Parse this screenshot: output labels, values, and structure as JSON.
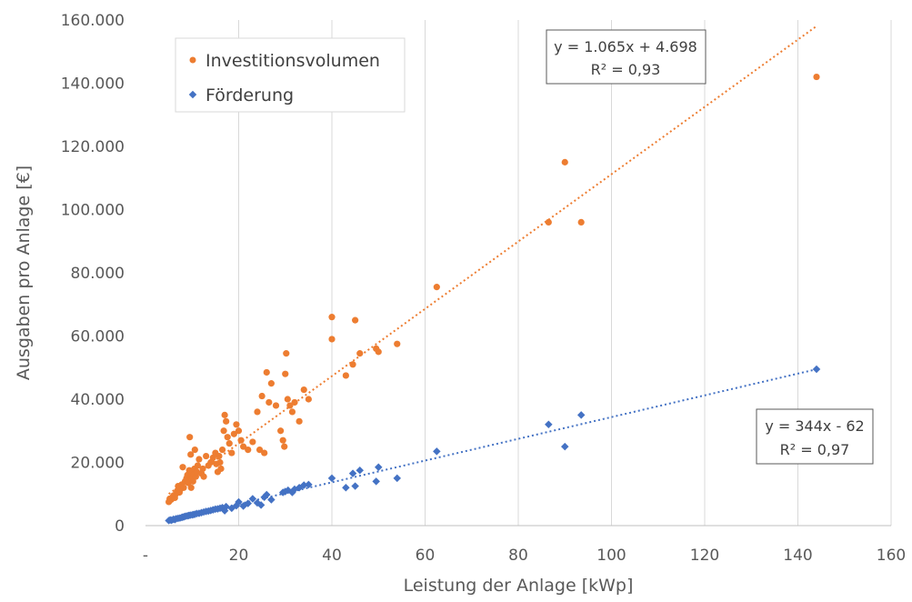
{
  "chart_data": {
    "type": "scatter",
    "xlabel": "Leistung der Anlage [kWp]",
    "ylabel": "Ausgaben pro Anlage [€]",
    "xlim": [
      0,
      160
    ],
    "ylim": [
      0,
      160000
    ],
    "x_ticks": [
      0,
      20,
      40,
      60,
      80,
      100,
      120,
      140,
      160
    ],
    "x_tick_labels": [
      "-",
      "20",
      "40",
      "60",
      "80",
      "100",
      "120",
      "140",
      "160"
    ],
    "y_ticks": [
      0,
      20000,
      40000,
      60000,
      80000,
      100000,
      120000,
      140000,
      160000
    ],
    "y_tick_labels": [
      "0",
      "20.000",
      "40.000",
      "60.000",
      "80.000",
      "100.000",
      "120.000",
      "140.000",
      "160.000"
    ],
    "grid": "vertical",
    "legend_position": "top-left",
    "series": [
      {
        "name": "Investitionsvolumen",
        "color": "#ED7D31",
        "marker": "circle",
        "trendline": {
          "slope": 1065,
          "intercept": 4698,
          "equation": "y = 1.065x + 4.698",
          "r2": "R² = 0,93"
        },
        "points": [
          [
            5.0,
            7500
          ],
          [
            5.2,
            8500
          ],
          [
            5.5,
            8200
          ],
          [
            5.8,
            9000
          ],
          [
            6.0,
            9500
          ],
          [
            6.3,
            8800
          ],
          [
            6.5,
            10000
          ],
          [
            6.8,
            11000
          ],
          [
            7.0,
            12500
          ],
          [
            7.3,
            10500
          ],
          [
            7.5,
            11500
          ],
          [
            7.8,
            13000
          ],
          [
            8.0,
            18500
          ],
          [
            8.2,
            12000
          ],
          [
            8.5,
            14000
          ],
          [
            8.8,
            15000
          ],
          [
            9.0,
            16000
          ],
          [
            9.2,
            13500
          ],
          [
            9.4,
            17500
          ],
          [
            9.5,
            28000
          ],
          [
            9.7,
            22500
          ],
          [
            9.8,
            12000
          ],
          [
            10.0,
            15000
          ],
          [
            10.0,
            17000
          ],
          [
            10.2,
            14000
          ],
          [
            10.3,
            16000
          ],
          [
            10.5,
            18000
          ],
          [
            10.6,
            24000
          ],
          [
            10.8,
            15500
          ],
          [
            11.0,
            17000
          ],
          [
            11.2,
            19000
          ],
          [
            11.5,
            21000
          ],
          [
            12.0,
            16500
          ],
          [
            12.3,
            18000
          ],
          [
            12.5,
            15500
          ],
          [
            13.0,
            22000
          ],
          [
            13.5,
            19000
          ],
          [
            14.0,
            20000
          ],
          [
            14.5,
            21500
          ],
          [
            15.0,
            23000
          ],
          [
            15.2,
            19500
          ],
          [
            15.5,
            17000
          ],
          [
            15.8,
            22000
          ],
          [
            16.0,
            20000
          ],
          [
            16.2,
            18000
          ],
          [
            16.5,
            24000
          ],
          [
            16.8,
            30000
          ],
          [
            17.0,
            35000
          ],
          [
            17.3,
            33000
          ],
          [
            17.6,
            28000
          ],
          [
            18.0,
            26000
          ],
          [
            18.5,
            23000
          ],
          [
            19.0,
            29000
          ],
          [
            19.5,
            32000
          ],
          [
            20.0,
            30000
          ],
          [
            20.5,
            27000
          ],
          [
            21.0,
            25000
          ],
          [
            22.0,
            24000
          ],
          [
            23.0,
            26500
          ],
          [
            24.0,
            36000
          ],
          [
            24.5,
            24000
          ],
          [
            25.0,
            41000
          ],
          [
            25.5,
            23000
          ],
          [
            26.0,
            48500
          ],
          [
            26.5,
            39000
          ],
          [
            27.0,
            45000
          ],
          [
            28.0,
            38000
          ],
          [
            29.0,
            30000
          ],
          [
            29.5,
            27000
          ],
          [
            29.8,
            25000
          ],
          [
            30.0,
            48000
          ],
          [
            30.2,
            54500
          ],
          [
            30.5,
            40000
          ],
          [
            31.0,
            38000
          ],
          [
            31.5,
            36000
          ],
          [
            32.0,
            39000
          ],
          [
            33.0,
            33000
          ],
          [
            34.0,
            43000
          ],
          [
            35.0,
            40000
          ],
          [
            40.0,
            66000
          ],
          [
            40.0,
            59000
          ],
          [
            43.0,
            47500
          ],
          [
            44.5,
            51000
          ],
          [
            45.0,
            65000
          ],
          [
            46.0,
            54500
          ],
          [
            49.5,
            56000
          ],
          [
            50.0,
            55000
          ],
          [
            54.0,
            57500
          ],
          [
            62.5,
            75500
          ],
          [
            86.5,
            96000
          ],
          [
            90.0,
            115000
          ],
          [
            93.5,
            96000
          ],
          [
            144.0,
            142000
          ]
        ]
      },
      {
        "name": "Förderung",
        "color": "#4472C4",
        "marker": "diamond",
        "trendline": {
          "slope": 344,
          "intercept": -62,
          "equation": "y = 344x - 62",
          "r2": "R² = 0,97"
        },
        "points": [
          [
            5.0,
            1600
          ],
          [
            5.3,
            1800
          ],
          [
            5.6,
            1700
          ],
          [
            6.0,
            2000
          ],
          [
            6.3,
            1900
          ],
          [
            6.6,
            2200
          ],
          [
            7.0,
            2300
          ],
          [
            7.4,
            2400
          ],
          [
            7.8,
            2600
          ],
          [
            8.0,
            2700
          ],
          [
            8.3,
            2800
          ],
          [
            8.6,
            3000
          ],
          [
            9.0,
            3100
          ],
          [
            9.3,
            3200
          ],
          [
            9.6,
            3300
          ],
          [
            10.0,
            3400
          ],
          [
            10.3,
            3500
          ],
          [
            10.6,
            3600
          ],
          [
            11.0,
            3800
          ],
          [
            11.5,
            3900
          ],
          [
            12.0,
            4100
          ],
          [
            12.5,
            4300
          ],
          [
            13.0,
            4500
          ],
          [
            13.5,
            4600
          ],
          [
            14.0,
            4800
          ],
          [
            14.5,
            5000
          ],
          [
            15.0,
            5200
          ],
          [
            15.5,
            5300
          ],
          [
            16.0,
            5500
          ],
          [
            16.5,
            5700
          ],
          [
            17.0,
            4700
          ],
          [
            17.3,
            6000
          ],
          [
            18.5,
            5500
          ],
          [
            19.5,
            6300
          ],
          [
            20.0,
            7500
          ],
          [
            21.0,
            6200
          ],
          [
            22.0,
            7000
          ],
          [
            23.0,
            8500
          ],
          [
            24.0,
            7200
          ],
          [
            24.8,
            6500
          ],
          [
            25.5,
            9000
          ],
          [
            26.0,
            9800
          ],
          [
            27.0,
            8200
          ],
          [
            29.5,
            10500
          ],
          [
            30.0,
            10800
          ],
          [
            30.6,
            11200
          ],
          [
            31.5,
            10500
          ],
          [
            32.0,
            11500
          ],
          [
            33.0,
            12000
          ],
          [
            34.0,
            12800
          ],
          [
            35.0,
            13000
          ],
          [
            40.0,
            15000
          ],
          [
            43.0,
            12000
          ],
          [
            44.5,
            16500
          ],
          [
            45.0,
            12500
          ],
          [
            46.0,
            17500
          ],
          [
            49.5,
            14000
          ],
          [
            50.0,
            18500
          ],
          [
            54.0,
            15000
          ],
          [
            62.5,
            23500
          ],
          [
            86.5,
            32000
          ],
          [
            90.0,
            25000
          ],
          [
            93.5,
            35000
          ],
          [
            144.0,
            49500
          ]
        ]
      }
    ]
  }
}
